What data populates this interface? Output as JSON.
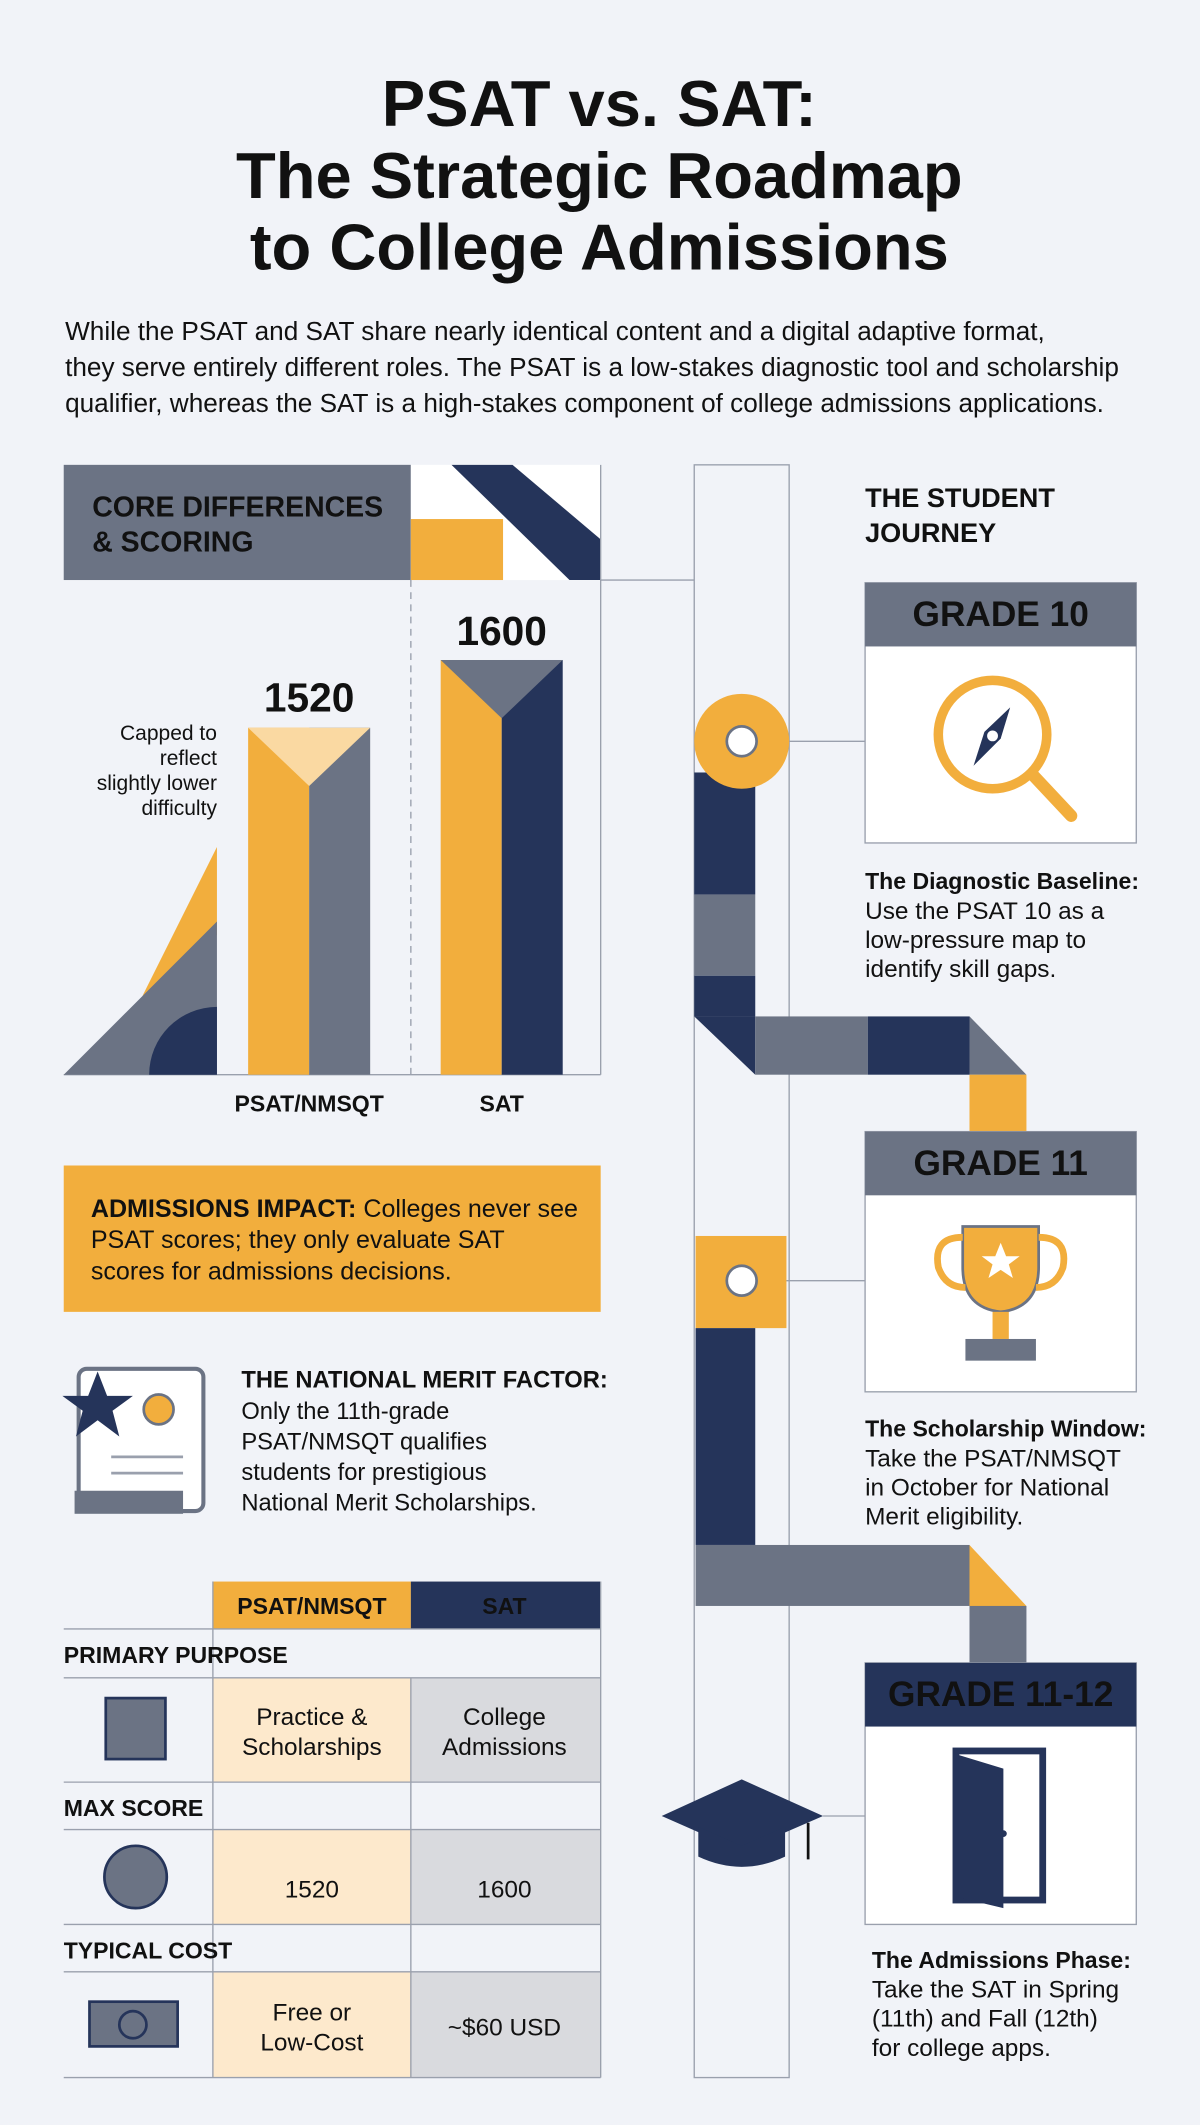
{
  "header": {
    "title": [
      "PSAT vs. SAT:",
      "The Strategic Roadmap",
      "to College Admissions"
    ],
    "intro": [
      "While the PSAT and SAT share nearly identical content and a digital adaptive format,",
      "they serve entirely different roles. The PSAT is a low-stakes diagnostic tool and scholarship",
      "qualifier, whereas the SAT is a high-stakes component of college admissions applications."
    ]
  },
  "scoring": {
    "title": [
      "CORE DIFFERENCES",
      "& SCORING"
    ],
    "psat_score": 1520,
    "sat_score": 1600,
    "note": [
      "Capped to",
      "reflect",
      "slightly lower",
      "difficulty"
    ],
    "psat_label": "PSAT/NMSQT",
    "sat_label": "SAT"
  },
  "impact": {
    "label": "ADMISSIONS IMPACT:",
    "lines": [
      " Colleges never see",
      "PSAT scores; they only evaluate SAT",
      "scores for admissions decisions."
    ]
  },
  "merit": {
    "label": "THE NATIONAL MERIT FACTOR:",
    "lines": [
      "Only the 11th-grade",
      "PSAT/NMSQT qualifies",
      "students for prestigious",
      "National Merit Scholarships."
    ]
  },
  "table": {
    "columns": [
      "PSAT/NMSQT",
      "SAT"
    ],
    "rows": [
      {
        "label": "PRIMARY PURPOSE",
        "psat": [
          "Practice &",
          "Scholarships"
        ],
        "sat": [
          "College",
          "Admissions"
        ]
      },
      {
        "label": "MAX SCORE",
        "psat": [
          "1520"
        ],
        "sat": [
          "1600"
        ]
      },
      {
        "label": "TYPICAL COST",
        "psat": [
          "Free or",
          "Low-Cost"
        ],
        "sat": [
          "~$60 USD"
        ]
      }
    ]
  },
  "journey": {
    "title": [
      "THE STUDENT",
      "JOURNEY"
    ],
    "steps": [
      {
        "grade": "GRADE 10",
        "heading": "The Diagnostic Baseline:",
        "lines": [
          "Use the PSAT 10 as a",
          "low-pressure map to",
          "identify skill gaps."
        ]
      },
      {
        "grade": "GRADE 11",
        "heading": "The Scholarship Window:",
        "lines": [
          "Take the PSAT/NMSQT",
          "in October for National",
          "Merit eligibility."
        ]
      },
      {
        "grade": "GRADE 11-12",
        "heading": "The Admissions Phase:",
        "lines": [
          "Take the SAT in Spring",
          "(11th) and Fall (12th)",
          "for college apps."
        ]
      }
    ]
  }
}
